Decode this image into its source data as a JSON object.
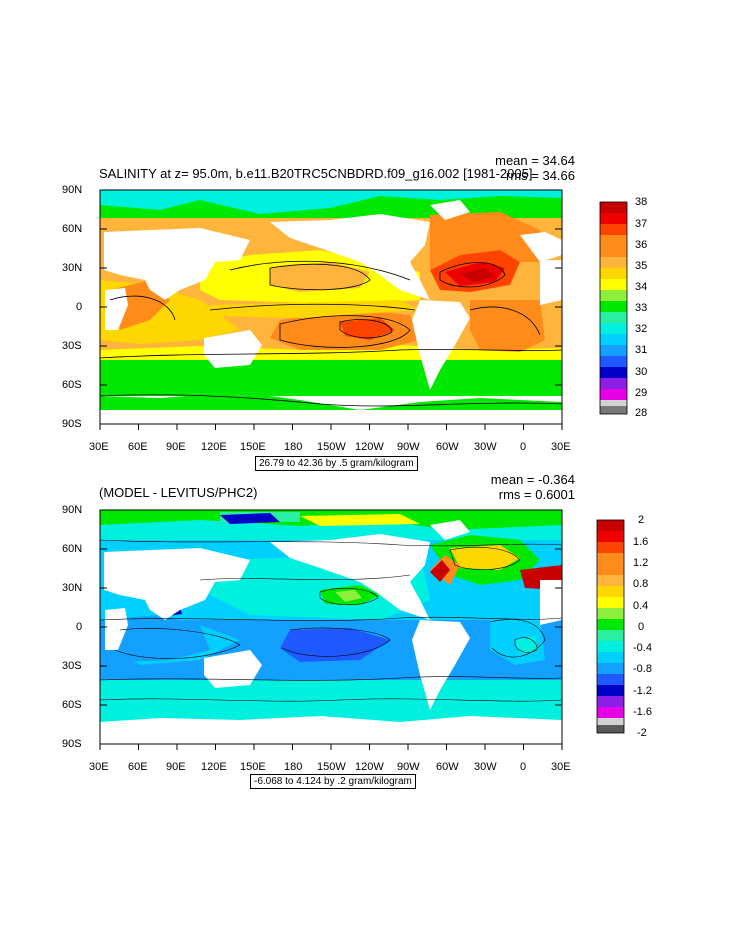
{
  "panels": [
    {
      "title": "SALINITY at z=  95.0m, b.e11.B20TRC5CNBDRD.f09_g16.002 [1981-2005]",
      "mean_label": "mean = 34.64",
      "rms_label": "rms = 34.66",
      "contour_info": "26.79 to 42.36 by .5 gram/kilogram",
      "lat_ticks": [
        "90N",
        "60N",
        "30N",
        "0",
        "30S",
        "60S",
        "90S"
      ],
      "lon_ticks": [
        "30E",
        "60E",
        "90E",
        "120E",
        "150E",
        "180",
        "150W",
        "120W",
        "90W",
        "60W",
        "30W",
        "0",
        "30E"
      ],
      "colorbar": {
        "labels": [
          "38",
          "37",
          "36",
          "35",
          "34",
          "33",
          "32",
          "31",
          "30",
          "29",
          "28"
        ],
        "colors": [
          "#c80000",
          "#ee0000",
          "#ff4400",
          "#ff8c1a",
          "#ffb43c",
          "#ffd700",
          "#ffff00",
          "#8cef3c",
          "#00e700",
          "#28f0a0",
          "#00f0e0",
          "#00d0ff",
          "#14a0ff",
          "#1e5aff",
          "#0000c8",
          "#8c1ee6",
          "#e600e6",
          "#d2d2d2",
          "#787878"
        ]
      }
    },
    {
      "title": "(MODEL - LEVITUS/PHC2)",
      "mean_label": "mean = -0.364",
      "rms_label": "rms = 0.6001",
      "contour_info": "-6.068 to 4.124 by .2 gram/kilogram",
      "lat_ticks": [
        "90N",
        "60N",
        "30N",
        "0",
        "30S",
        "60S",
        "90S"
      ],
      "lon_ticks": [
        "30E",
        "60E",
        "90E",
        "120E",
        "150E",
        "180",
        "150W",
        "120W",
        "90W",
        "60W",
        "30W",
        "0",
        "30E"
      ],
      "colorbar": {
        "labels": [
          "2",
          "1.6",
          "1.2",
          "0.8",
          "0.4",
          "0",
          "-0.4",
          "-0.8",
          "-1.2",
          "-1.6",
          "-2"
        ],
        "colors": [
          "#c80000",
          "#ee0000",
          "#ff4400",
          "#ff8c1a",
          "#ffb43c",
          "#ffd700",
          "#ffff00",
          "#8cef3c",
          "#00e700",
          "#28f0a0",
          "#00f0e0",
          "#00d0ff",
          "#14a0ff",
          "#1e5aff",
          "#0000c8",
          "#8c1ee6",
          "#e600e6",
          "#d2d2d2",
          "#787878",
          "#5a5a5a"
        ]
      }
    }
  ]
}
